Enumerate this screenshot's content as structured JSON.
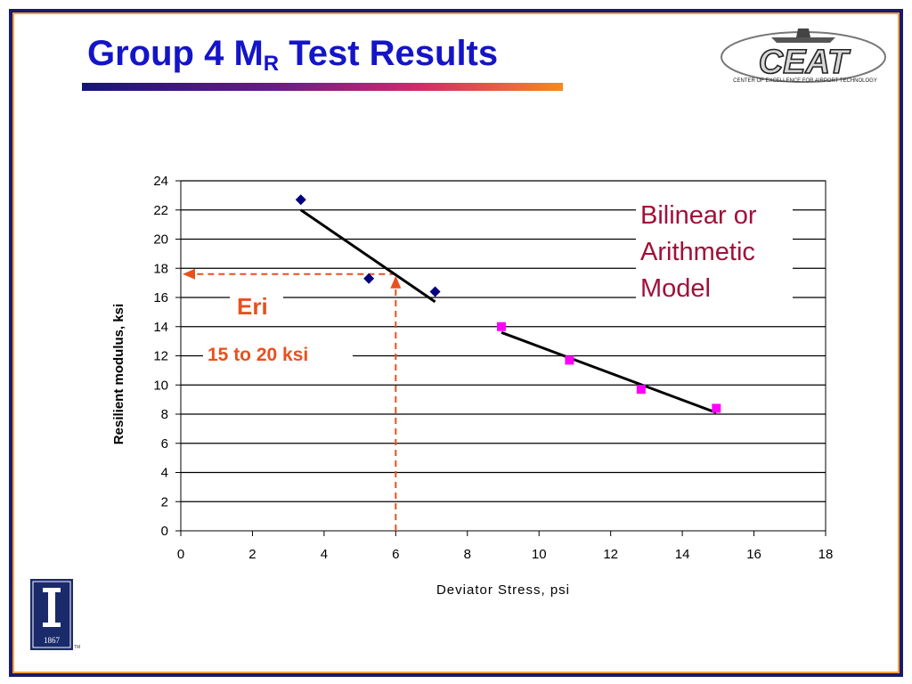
{
  "slide": {
    "title_main": "Group 4 M",
    "title_sub": "R",
    "title_rest": " Test Results",
    "logo_text": "CEAT",
    "logo_caption": "CENTER OF EXCELLENCE FOR AIRPORT TECHNOLOGY",
    "university_year": "1867",
    "university_tm": "TM",
    "colors": {
      "title": "#1414c8",
      "frame": "#1a1a6e",
      "accent": "#f2a33a"
    }
  },
  "chart_data": {
    "type": "scatter",
    "title": "",
    "xlabel": "Deviator Stress, psi",
    "ylabel": "Resilient modulus, ksi",
    "xlim": [
      0,
      18
    ],
    "ylim": [
      0,
      24
    ],
    "xticks": [
      0,
      2,
      4,
      6,
      8,
      10,
      12,
      14,
      16,
      18
    ],
    "yticks": [
      0,
      2,
      4,
      6,
      8,
      10,
      12,
      14,
      16,
      18,
      20,
      22,
      24
    ],
    "grid": "horizontal",
    "series": [
      {
        "marker": "diamond",
        "color": "#000080",
        "points": [
          [
            3.35,
            22.7
          ],
          [
            5.25,
            17.3
          ],
          [
            7.1,
            16.4
          ]
        ]
      },
      {
        "marker": "square",
        "color": "#ff00ff",
        "points": [
          [
            8.95,
            14.0
          ],
          [
            10.85,
            11.7
          ],
          [
            12.85,
            9.7
          ],
          [
            14.95,
            8.4
          ]
        ]
      }
    ],
    "trendlines": [
      {
        "color": "#000000",
        "from": [
          3.35,
          22.0
        ],
        "to": [
          7.1,
          15.7
        ]
      },
      {
        "color": "#000000",
        "from": [
          8.95,
          13.6
        ],
        "to": [
          14.95,
          8.1
        ]
      }
    ],
    "guide": {
      "color": "#e8501e",
      "x": 6,
      "y": 17.6
    },
    "annotations": {
      "eri": "Eri",
      "range": "15 to 20 ksi",
      "model_line1": "Bilinear or",
      "model_line2": "Arithmetic",
      "model_line3": "Model"
    }
  }
}
